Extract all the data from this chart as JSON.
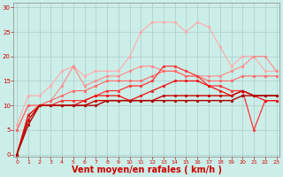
{
  "background_color": "#cceee8",
  "grid_color": "#aacccc",
  "xlabel": "Vent moyen/en rafales ( km/h )",
  "xlabel_color": "#cc0000",
  "xlabel_fontsize": 7,
  "yticks": [
    0,
    5,
    10,
    15,
    20,
    25,
    30
  ],
  "xticks": [
    0,
    1,
    2,
    3,
    4,
    5,
    6,
    7,
    8,
    9,
    10,
    11,
    12,
    13,
    14,
    15,
    16,
    17,
    18,
    19,
    20,
    21,
    22,
    23
  ],
  "ylim": [
    -0.5,
    31
  ],
  "xlim": [
    -0.3,
    23.3
  ],
  "series": [
    {
      "color": "#ffaaaa",
      "linewidth": 0.8,
      "marker": "o",
      "markersize": 2.0,
      "data": [
        6,
        12,
        12,
        14,
        17,
        18,
        16,
        17,
        17,
        17,
        20,
        25,
        27,
        27,
        27,
        25,
        27,
        26,
        22,
        18,
        20,
        20,
        17,
        17
      ]
    },
    {
      "color": "#ff8888",
      "linewidth": 0.8,
      "marker": "o",
      "markersize": 2.0,
      "data": [
        5,
        10,
        10,
        11,
        14,
        18,
        14,
        15,
        16,
        16,
        17,
        18,
        18,
        17,
        17,
        16,
        16,
        16,
        16,
        17,
        18,
        20,
        20,
        17
      ]
    },
    {
      "color": "#ff6666",
      "linewidth": 0.8,
      "marker": "o",
      "markersize": 2.0,
      "data": [
        5,
        10,
        10,
        11,
        12,
        13,
        13,
        14,
        15,
        15,
        15,
        15,
        16,
        17,
        17,
        16,
        16,
        15,
        15,
        15,
        16,
        16,
        16,
        16
      ]
    },
    {
      "color": "#ff3333",
      "linewidth": 0.9,
      "marker": "o",
      "markersize": 2.0,
      "data": [
        0,
        8,
        10,
        10,
        11,
        11,
        11,
        12,
        13,
        13,
        14,
        14,
        15,
        18,
        18,
        17,
        16,
        14,
        14,
        13,
        13,
        5,
        11,
        11
      ]
    },
    {
      "color": "#ee1111",
      "linewidth": 0.9,
      "marker": "o",
      "markersize": 2.0,
      "data": [
        0,
        8,
        10,
        10,
        10,
        10,
        11,
        12,
        12,
        12,
        11,
        12,
        13,
        14,
        15,
        15,
        15,
        14,
        13,
        12,
        13,
        12,
        11,
        11
      ]
    },
    {
      "color": "#cc0000",
      "linewidth": 1.0,
      "marker": "o",
      "markersize": 2.0,
      "data": [
        0,
        7,
        10,
        10,
        10,
        10,
        10,
        11,
        11,
        11,
        11,
        11,
        11,
        12,
        12,
        12,
        12,
        12,
        12,
        12,
        13,
        12,
        12,
        12
      ]
    },
    {
      "color": "#aa0000",
      "linewidth": 1.0,
      "marker": "o",
      "markersize": 2.0,
      "data": [
        0,
        6,
        10,
        10,
        10,
        10,
        10,
        10,
        11,
        11,
        11,
        11,
        11,
        11,
        11,
        11,
        11,
        11,
        11,
        11,
        12,
        12,
        12,
        12
      ]
    }
  ]
}
